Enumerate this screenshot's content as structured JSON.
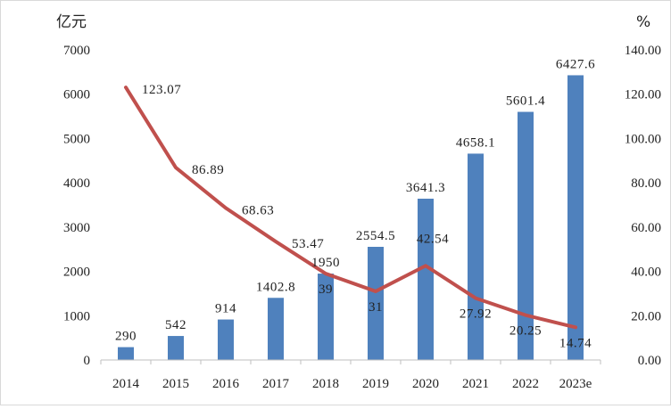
{
  "chart_data": {
    "type": "bar",
    "categories": [
      "2014",
      "2015",
      "2016",
      "2017",
      "2018",
      "2019",
      "2020",
      "2021",
      "2022",
      "2023e"
    ],
    "series": [
      {
        "type": "bar",
        "axis": "left",
        "values": [
          290,
          542,
          914,
          1402.8,
          1950,
          2554.5,
          3641.3,
          4658.1,
          5601.4,
          6427.6
        ],
        "labels": [
          "290",
          "542",
          "914",
          "1402.8",
          "1950",
          "2554.5",
          "3641.3",
          "4658.1",
          "5601.4",
          "6427.6"
        ],
        "color": "#4f81bd"
      },
      {
        "type": "line",
        "axis": "right",
        "values": [
          123.07,
          86.89,
          68.63,
          53.47,
          39,
          31,
          42.54,
          27.92,
          20.25,
          14.74
        ],
        "labels": [
          "123.07",
          "86.89",
          "68.63",
          "53.47",
          "39",
          "31",
          "42.54",
          "27.92",
          "20.25",
          "14.74"
        ],
        "color": "#c0504d"
      }
    ],
    "y_left": {
      "unit": "亿元",
      "ylim": [
        0,
        7000
      ],
      "ticks": [
        "0",
        "1000",
        "2000",
        "3000",
        "4000",
        "5000",
        "6000",
        "7000"
      ]
    },
    "y_right": {
      "unit": "%",
      "ylim": [
        0,
        140
      ],
      "ticks": [
        "0.00",
        "20.00",
        "40.00",
        "60.00",
        "80.00",
        "100.00",
        "120.00",
        "140.00"
      ]
    },
    "grid": false,
    "legend": "none"
  }
}
